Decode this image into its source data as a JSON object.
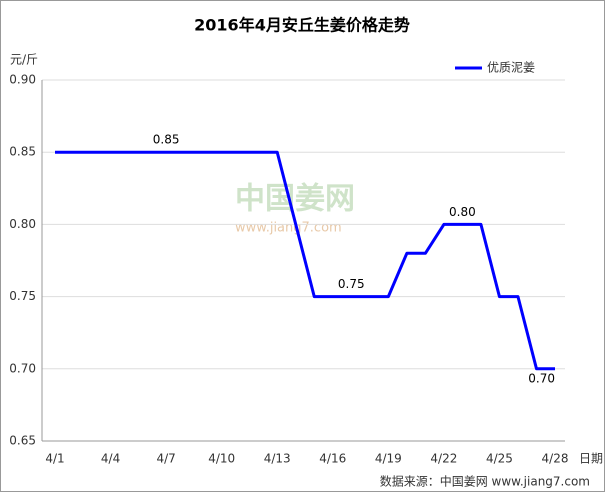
{
  "chart_data": {
    "type": "line",
    "title": "2016年4月安丘生姜价格走势",
    "y_label": "元/斤",
    "x_label": "日期",
    "source": "数据来源：中国姜网 www.jiang7.com",
    "watermark": [
      "中国姜网",
      "www.jiang7.com"
    ],
    "legend": "top-right",
    "grid": true,
    "categories": [
      "4/1",
      null,
      null,
      "4/4",
      null,
      null,
      "4/7",
      null,
      null,
      "4/10",
      null,
      null,
      "4/13",
      null,
      null,
      "4/16",
      null,
      null,
      "4/19",
      null,
      null,
      "4/22",
      null,
      null,
      "4/25",
      null,
      null,
      "4/28"
    ],
    "series": [
      {
        "name": "优质泥姜",
        "color": "#0000ff",
        "values": [
          0.85,
          0.85,
          0.85,
          0.85,
          0.85,
          0.85,
          0.85,
          0.85,
          0.85,
          0.85,
          0.85,
          0.85,
          0.85,
          0.8,
          0.75,
          0.75,
          0.75,
          0.75,
          0.75,
          0.78,
          0.78,
          0.8,
          0.8,
          0.8,
          0.75,
          0.75,
          0.7,
          0.7
        ],
        "value_labels": [
          null,
          null,
          null,
          null,
          null,
          null,
          "0.85",
          null,
          null,
          null,
          null,
          null,
          null,
          null,
          null,
          null,
          "0.75",
          null,
          null,
          null,
          null,
          null,
          "0.80",
          null,
          null,
          null,
          null,
          "0.70"
        ]
      }
    ],
    "ylim": [
      0.65,
      0.9
    ],
    "yticks": [
      0.65,
      {
        "value": 0.7,
        "label": "0.70"
      },
      0.75,
      {
        "value": 0.8,
        "label": "0.80"
      },
      0.85,
      {
        "value": 0.9,
        "label": "0.90"
      }
    ]
  }
}
